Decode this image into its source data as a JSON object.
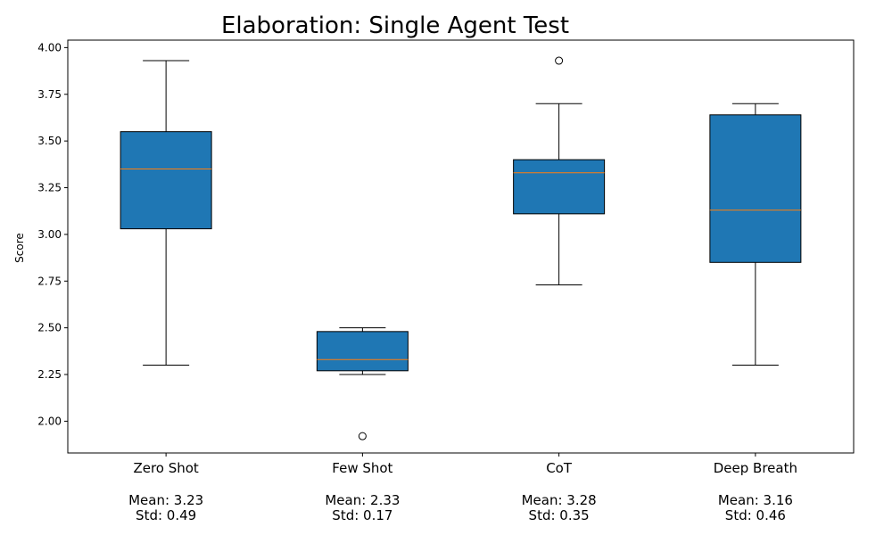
{
  "chart_data": {
    "type": "box",
    "title": "Elaboration: Single Agent Test",
    "xlabel": "",
    "ylabel": "Score",
    "ylim": [
      1.83,
      4.04
    ],
    "yticks": [
      "2.00",
      "2.25",
      "2.50",
      "2.75",
      "3.00",
      "3.25",
      "3.50",
      "3.75",
      "4.00"
    ],
    "grid": false,
    "box_color": "#1f77b4",
    "median_color": "#ff7f0e",
    "categories": [
      {
        "label": "Zero Shot",
        "mean_text": "Mean: 3.23",
        "std_text": "Std: 0.49",
        "whisker_low": 2.3,
        "q1": 3.03,
        "median": 3.35,
        "q3": 3.55,
        "whisker_high": 3.93,
        "outliers": []
      },
      {
        "label": "Few Shot",
        "mean_text": "Mean: 2.33",
        "std_text": "Std: 0.17",
        "whisker_low": 2.25,
        "q1": 2.27,
        "median": 2.33,
        "q3": 2.48,
        "whisker_high": 2.5,
        "outliers": [
          1.92
        ]
      },
      {
        "label": "CoT",
        "mean_text": "Mean: 3.28",
        "std_text": "Std: 0.35",
        "whisker_low": 2.73,
        "q1": 3.11,
        "median": 3.33,
        "q3": 3.4,
        "whisker_high": 3.7,
        "outliers": [
          3.93
        ]
      },
      {
        "label": "Deep Breath",
        "mean_text": "Mean: 3.16",
        "std_text": "Std: 0.46",
        "whisker_low": 2.3,
        "q1": 2.85,
        "median": 3.13,
        "q3": 3.64,
        "whisker_high": 3.7,
        "outliers": []
      }
    ]
  }
}
